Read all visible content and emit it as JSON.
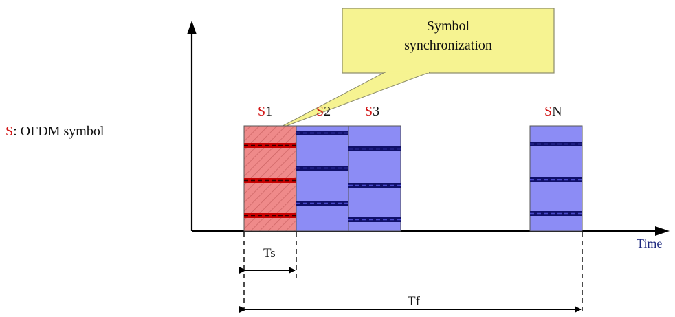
{
  "legend": {
    "symbol_letter": "S",
    "text": ": OFDM symbol"
  },
  "callout": {
    "line1": "Symbol",
    "line2": "synchronization"
  },
  "symbols": [
    {
      "prefix": "S",
      "suffix": "1"
    },
    {
      "prefix": "S",
      "suffix": "2"
    },
    {
      "prefix": "S",
      "suffix": "3"
    },
    {
      "prefix": "S",
      "suffix": "N"
    }
  ],
  "axis": {
    "x_label": "Time"
  },
  "durations": {
    "ts": "Ts",
    "tf": "Tf"
  },
  "colors": {
    "red_text": "#d21414",
    "axis_label": "#1f2a80",
    "sync_symbol_fill": "#ef8a8a",
    "symbol_fill": "#8c8cf5",
    "callout_fill": "#f6f391"
  }
}
